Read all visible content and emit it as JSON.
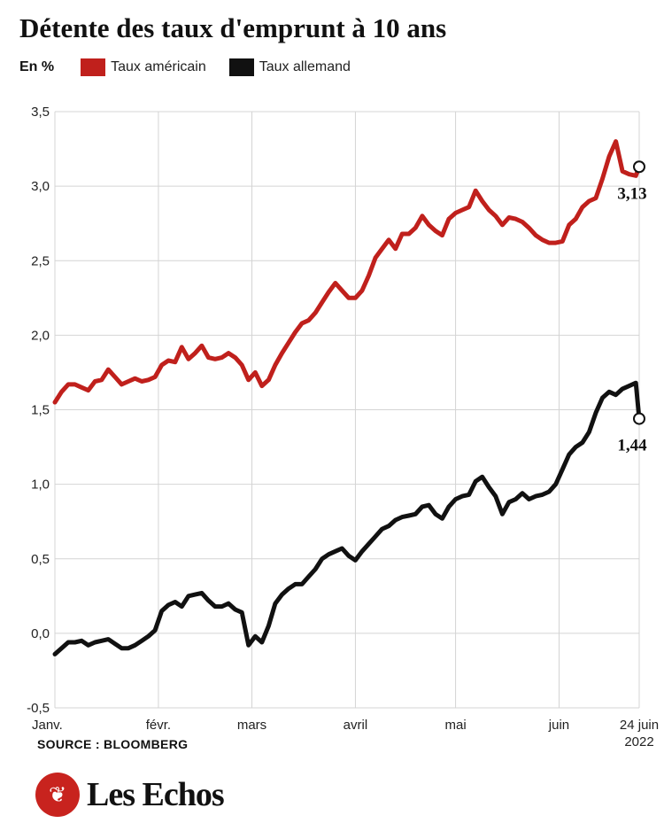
{
  "header": {
    "title": "Détente des taux d'emprunt à 10 ans",
    "unit": "En %"
  },
  "legend": [
    {
      "label": "Taux américain",
      "color": "#c0201c"
    },
    {
      "label": "Taux allemand",
      "color": "#111111"
    }
  ],
  "footer": {
    "source": "SOURCE : BLOOMBERG",
    "brand": "Les Echos",
    "brand_icon": "les-echos-logo-icon"
  },
  "chart_data": {
    "type": "line",
    "title": "Détente des taux d'emprunt à 10 ans",
    "ylabel": "En %",
    "ylim": [
      -0.5,
      3.5
    ],
    "yticks": [
      "3,5",
      "3,0",
      "2,5",
      "2,0",
      "1,5",
      "1,0",
      "0,5",
      "0,0",
      "-0,5"
    ],
    "ytick_values": [
      3.5,
      3.0,
      2.5,
      2.0,
      1.5,
      1.0,
      0.5,
      0.0,
      -0.5
    ],
    "xticks": [
      "Janv.",
      "févr.",
      "mars",
      "avril",
      "mai",
      "juin",
      "24 juin",
      "2022"
    ],
    "xtick_days": [
      0,
      31,
      59,
      90,
      120,
      151,
      175
    ],
    "grid": true,
    "end_labels": [
      "3,13",
      "1,44"
    ],
    "series": [
      {
        "name": "Taux américain",
        "color": "#c0201c",
        "x": [
          0,
          2,
          4,
          6,
          8,
          10,
          12,
          14,
          16,
          18,
          20,
          22,
          24,
          26,
          28,
          30,
          32,
          34,
          36,
          38,
          40,
          42,
          44,
          46,
          48,
          50,
          52,
          54,
          56,
          58,
          60,
          62,
          64,
          66,
          68,
          70,
          72,
          74,
          76,
          78,
          80,
          82,
          84,
          86,
          88,
          90,
          92,
          94,
          96,
          98,
          100,
          102,
          104,
          106,
          108,
          110,
          112,
          114,
          116,
          118,
          120,
          122,
          124,
          126,
          128,
          130,
          132,
          134,
          136,
          138,
          140,
          142,
          144,
          146,
          148,
          150,
          152,
          154,
          156,
          158,
          160,
          162,
          164,
          166,
          168,
          170,
          172,
          174,
          175
        ],
        "values": [
          1.55,
          1.62,
          1.67,
          1.67,
          1.65,
          1.63,
          1.69,
          1.7,
          1.77,
          1.72,
          1.67,
          1.69,
          1.71,
          1.69,
          1.7,
          1.72,
          1.8,
          1.83,
          1.82,
          1.92,
          1.84,
          1.88,
          1.93,
          1.85,
          1.84,
          1.85,
          1.88,
          1.85,
          1.8,
          1.7,
          1.75,
          1.66,
          1.7,
          1.8,
          1.88,
          1.95,
          2.02,
          2.08,
          2.1,
          2.15,
          2.22,
          2.29,
          2.35,
          2.3,
          2.25,
          2.25,
          2.3,
          2.4,
          2.52,
          2.58,
          2.64,
          2.58,
          2.68,
          2.68,
          2.72,
          2.8,
          2.74,
          2.7,
          2.67,
          2.78,
          2.82,
          2.84,
          2.86,
          2.97,
          2.9,
          2.84,
          2.8,
          2.74,
          2.79,
          2.78,
          2.76,
          2.72,
          2.67,
          2.64,
          2.62,
          2.62,
          2.63,
          2.74,
          2.78,
          2.86,
          2.9,
          2.92,
          3.05,
          3.2,
          3.3,
          3.1,
          3.08,
          3.07,
          3.13
        ]
      },
      {
        "name": "Taux allemand",
        "color": "#111111",
        "x": [
          0,
          2,
          4,
          6,
          8,
          10,
          12,
          14,
          16,
          18,
          20,
          22,
          24,
          26,
          28,
          30,
          32,
          34,
          36,
          38,
          40,
          42,
          44,
          46,
          48,
          50,
          52,
          54,
          56,
          58,
          60,
          62,
          64,
          66,
          68,
          70,
          72,
          74,
          76,
          78,
          80,
          82,
          84,
          86,
          88,
          90,
          92,
          94,
          96,
          98,
          100,
          102,
          104,
          106,
          108,
          110,
          112,
          114,
          116,
          118,
          120,
          122,
          124,
          126,
          128,
          130,
          132,
          134,
          136,
          138,
          140,
          142,
          144,
          146,
          148,
          150,
          152,
          154,
          156,
          158,
          160,
          162,
          164,
          166,
          168,
          170,
          172,
          174,
          175
        ],
        "values": [
          -0.14,
          -0.1,
          -0.06,
          -0.06,
          -0.05,
          -0.08,
          -0.06,
          -0.05,
          -0.04,
          -0.07,
          -0.1,
          -0.1,
          -0.08,
          -0.05,
          -0.02,
          0.02,
          0.15,
          0.19,
          0.21,
          0.18,
          0.25,
          0.26,
          0.27,
          0.22,
          0.18,
          0.18,
          0.2,
          0.16,
          0.14,
          -0.08,
          -0.02,
          -0.06,
          0.05,
          0.2,
          0.26,
          0.3,
          0.33,
          0.33,
          0.38,
          0.43,
          0.5,
          0.53,
          0.55,
          0.57,
          0.52,
          0.49,
          0.55,
          0.6,
          0.65,
          0.7,
          0.72,
          0.76,
          0.78,
          0.79,
          0.8,
          0.85,
          0.86,
          0.8,
          0.77,
          0.85,
          0.9,
          0.92,
          0.93,
          1.02,
          1.05,
          0.98,
          0.92,
          0.8,
          0.88,
          0.9,
          0.94,
          0.9,
          0.92,
          0.93,
          0.95,
          1.0,
          1.1,
          1.2,
          1.25,
          1.28,
          1.35,
          1.48,
          1.58,
          1.62,
          1.6,
          1.64,
          1.66,
          1.68,
          1.44
        ]
      }
    ]
  }
}
